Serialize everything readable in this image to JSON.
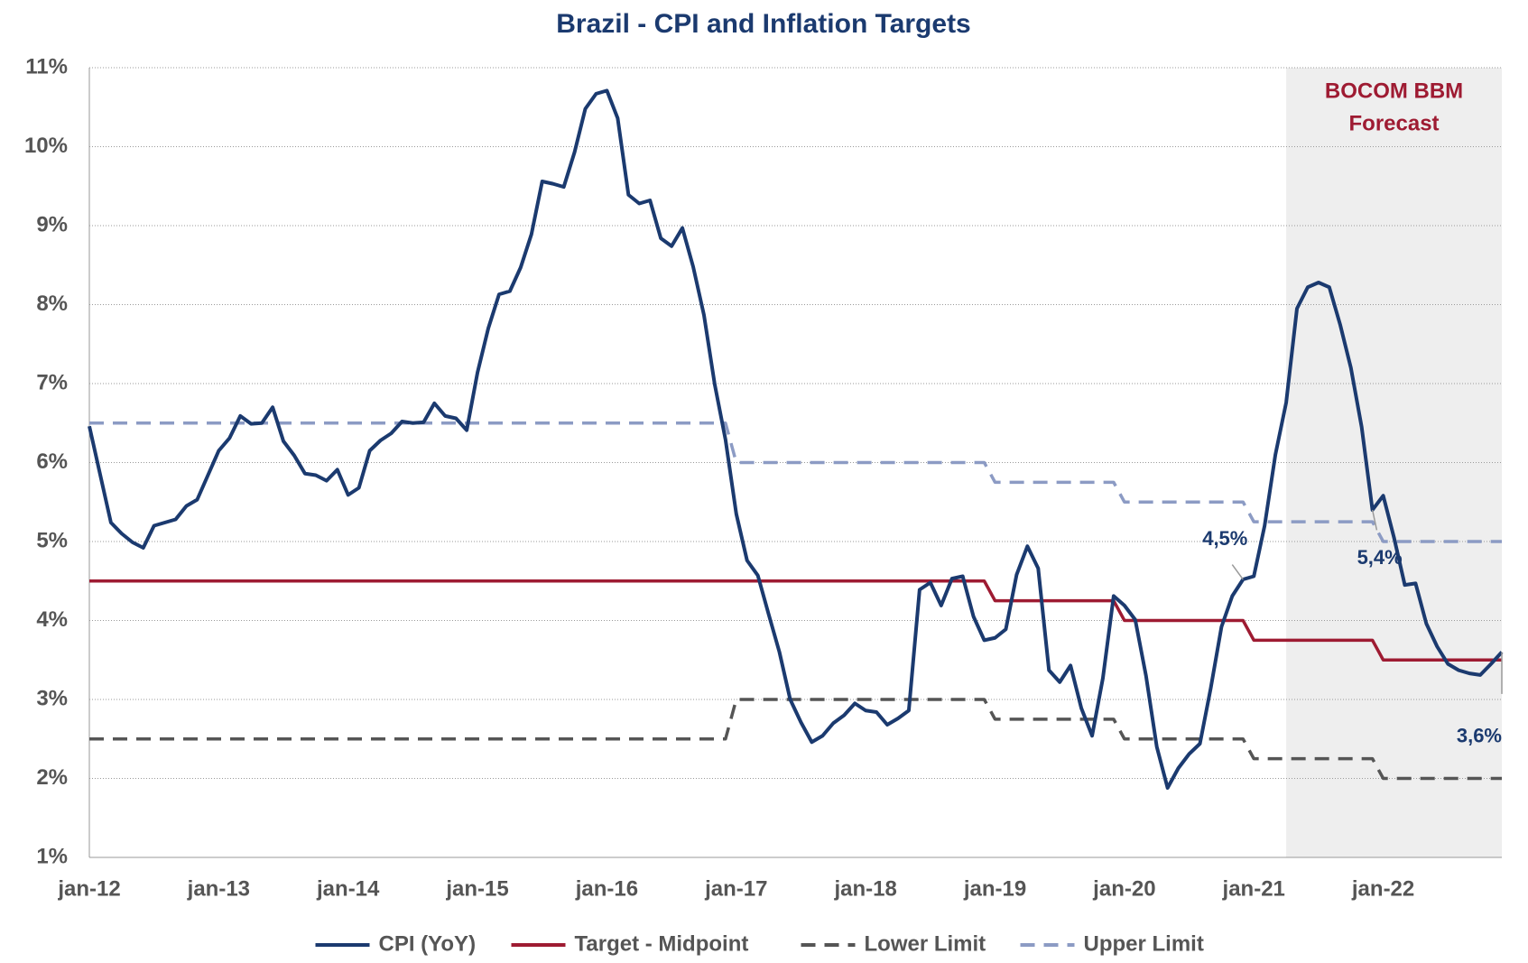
{
  "chart_data": {
    "type": "line",
    "title": "Brazil - CPI and Inflation Targets",
    "categories": [
      "jan-12",
      null,
      null,
      null,
      null,
      null,
      null,
      null,
      null,
      null,
      null,
      null,
      "jan-13",
      null,
      null,
      null,
      null,
      null,
      null,
      null,
      null,
      null,
      null,
      null,
      "jan-14",
      null,
      null,
      null,
      null,
      null,
      null,
      null,
      null,
      null,
      null,
      null,
      "jan-15",
      null,
      null,
      null,
      null,
      null,
      null,
      null,
      null,
      null,
      null,
      null,
      "jan-16",
      null,
      null,
      null,
      null,
      null,
      null,
      null,
      null,
      null,
      null,
      null,
      "jan-17",
      null,
      null,
      null,
      null,
      null,
      null,
      null,
      null,
      null,
      null,
      null,
      "jan-18",
      null,
      null,
      null,
      null,
      null,
      null,
      null,
      null,
      null,
      null,
      null,
      "jan-19",
      null,
      null,
      null,
      null,
      null,
      null,
      null,
      null,
      null,
      null,
      null,
      "jan-20",
      null,
      null,
      null,
      null,
      null,
      null,
      null,
      null,
      null,
      null,
      null,
      "jan-21",
      null,
      null,
      null,
      null,
      null,
      null,
      null,
      null,
      null,
      null,
      null,
      "jan-22",
      null,
      null,
      null,
      null,
      null,
      null,
      null,
      null,
      null,
      null,
      null
    ],
    "series": [
      {
        "name": "CPI (YoY)",
        "color": "#1b3a6f",
        "dash": false,
        "values": [
          6.46,
          5.85,
          5.24,
          5.1,
          4.99,
          4.92,
          5.2,
          5.24,
          5.28,
          5.45,
          5.53,
          5.84,
          6.15,
          6.31,
          6.59,
          6.49,
          6.5,
          6.7,
          6.27,
          6.09,
          5.86,
          5.84,
          5.77,
          5.91,
          5.59,
          5.68,
          6.15,
          6.28,
          6.37,
          6.52,
          6.5,
          6.51,
          6.75,
          6.59,
          6.56,
          6.41,
          7.14,
          7.7,
          8.13,
          8.17,
          8.47,
          8.89,
          9.56,
          9.53,
          9.49,
          9.93,
          10.48,
          10.67,
          10.71,
          10.36,
          9.39,
          9.28,
          9.32,
          8.84,
          8.74,
          8.97,
          8.48,
          7.87,
          6.99,
          6.29,
          5.35,
          4.76,
          4.57,
          4.08,
          3.6,
          3.0,
          2.71,
          2.46,
          2.54,
          2.7,
          2.8,
          2.95,
          2.86,
          2.84,
          2.68,
          2.76,
          2.86,
          4.39,
          4.48,
          4.19,
          4.53,
          4.56,
          4.05,
          3.75,
          3.78,
          3.89,
          4.58,
          4.94,
          4.66,
          3.37,
          3.22,
          3.43,
          2.89,
          2.54,
          3.27,
          4.31,
          4.19,
          4.01,
          3.3,
          2.4,
          1.88,
          2.13,
          2.31,
          2.44,
          3.14,
          3.92,
          4.31,
          4.52,
          4.56,
          5.2,
          6.1,
          6.76,
          7.95,
          8.22,
          8.28,
          8.22,
          7.75,
          7.2,
          6.45,
          5.4,
          5.58,
          5.05,
          4.45,
          4.47,
          3.96,
          3.67,
          3.45,
          3.37,
          3.33,
          3.31,
          3.45,
          3.6
        ],
        "value_labels": [
          null,
          null,
          null,
          null,
          null,
          null,
          null,
          null,
          null,
          null,
          null,
          null,
          null,
          null,
          null,
          null,
          null,
          null,
          null,
          null,
          null,
          null,
          null,
          null,
          null,
          null,
          null,
          null,
          null,
          null,
          null,
          null,
          null,
          null,
          null,
          null,
          null,
          null,
          null,
          null,
          null,
          null,
          null,
          null,
          null,
          null,
          null,
          null,
          null,
          null,
          null,
          null,
          null,
          null,
          null,
          null,
          null,
          null,
          null,
          null,
          null,
          null,
          null,
          null,
          null,
          null,
          null,
          null,
          null,
          null,
          null,
          null,
          null,
          null,
          null,
          null,
          null,
          null,
          null,
          null,
          null,
          null,
          null,
          null,
          null,
          null,
          null,
          null,
          null,
          null,
          null,
          null,
          null,
          null,
          null,
          null,
          null,
          null,
          null,
          null,
          null,
          null,
          null,
          null,
          null,
          null,
          null,
          "4,5%",
          null,
          null,
          null,
          null,
          null,
          null,
          null,
          null,
          null,
          null,
          null,
          "5,4%",
          null,
          null,
          null,
          null,
          null,
          null,
          null,
          null,
          null,
          null,
          null,
          "3,6%"
        ]
      },
      {
        "name": "Target - Midpoint",
        "color": "#9e1b32",
        "dash": false,
        "values": [
          4.5,
          4.5,
          4.5,
          4.5,
          4.5,
          4.5,
          4.5,
          4.5,
          4.5,
          4.5,
          4.5,
          4.5,
          4.5,
          4.5,
          4.5,
          4.5,
          4.5,
          4.5,
          4.5,
          4.5,
          4.5,
          4.5,
          4.5,
          4.5,
          4.5,
          4.5,
          4.5,
          4.5,
          4.5,
          4.5,
          4.5,
          4.5,
          4.5,
          4.5,
          4.5,
          4.5,
          4.5,
          4.5,
          4.5,
          4.5,
          4.5,
          4.5,
          4.5,
          4.5,
          4.5,
          4.5,
          4.5,
          4.5,
          4.5,
          4.5,
          4.5,
          4.5,
          4.5,
          4.5,
          4.5,
          4.5,
          4.5,
          4.5,
          4.5,
          4.5,
          4.5,
          4.5,
          4.5,
          4.5,
          4.5,
          4.5,
          4.5,
          4.5,
          4.5,
          4.5,
          4.5,
          4.5,
          4.5,
          4.5,
          4.5,
          4.5,
          4.5,
          4.5,
          4.5,
          4.5,
          4.5,
          4.5,
          4.5,
          4.5,
          4.25,
          4.25,
          4.25,
          4.25,
          4.25,
          4.25,
          4.25,
          4.25,
          4.25,
          4.25,
          4.25,
          4.25,
          4.0,
          4.0,
          4.0,
          4.0,
          4.0,
          4.0,
          4.0,
          4.0,
          4.0,
          4.0,
          4.0,
          4.0,
          3.75,
          3.75,
          3.75,
          3.75,
          3.75,
          3.75,
          3.75,
          3.75,
          3.75,
          3.75,
          3.75,
          3.75,
          3.5,
          3.5,
          3.5,
          3.5,
          3.5,
          3.5,
          3.5,
          3.5,
          3.5,
          3.5,
          3.5,
          3.5
        ]
      },
      {
        "name": "Lower Limit",
        "color": "#555555",
        "dash": true,
        "values": [
          2.5,
          2.5,
          2.5,
          2.5,
          2.5,
          2.5,
          2.5,
          2.5,
          2.5,
          2.5,
          2.5,
          2.5,
          2.5,
          2.5,
          2.5,
          2.5,
          2.5,
          2.5,
          2.5,
          2.5,
          2.5,
          2.5,
          2.5,
          2.5,
          2.5,
          2.5,
          2.5,
          2.5,
          2.5,
          2.5,
          2.5,
          2.5,
          2.5,
          2.5,
          2.5,
          2.5,
          2.5,
          2.5,
          2.5,
          2.5,
          2.5,
          2.5,
          2.5,
          2.5,
          2.5,
          2.5,
          2.5,
          2.5,
          2.5,
          2.5,
          2.5,
          2.5,
          2.5,
          2.5,
          2.5,
          2.5,
          2.5,
          2.5,
          2.5,
          2.5,
          3.0,
          3.0,
          3.0,
          3.0,
          3.0,
          3.0,
          3.0,
          3.0,
          3.0,
          3.0,
          3.0,
          3.0,
          3.0,
          3.0,
          3.0,
          3.0,
          3.0,
          3.0,
          3.0,
          3.0,
          3.0,
          3.0,
          3.0,
          3.0,
          2.75,
          2.75,
          2.75,
          2.75,
          2.75,
          2.75,
          2.75,
          2.75,
          2.75,
          2.75,
          2.75,
          2.75,
          2.5,
          2.5,
          2.5,
          2.5,
          2.5,
          2.5,
          2.5,
          2.5,
          2.5,
          2.5,
          2.5,
          2.5,
          2.25,
          2.25,
          2.25,
          2.25,
          2.25,
          2.25,
          2.25,
          2.25,
          2.25,
          2.25,
          2.25,
          2.25,
          2.0,
          2.0,
          2.0,
          2.0,
          2.0,
          2.0,
          2.0,
          2.0,
          2.0,
          2.0,
          2.0,
          2.0
        ]
      },
      {
        "name": "Upper Limit",
        "color": "#8c9bc4",
        "dash": true,
        "values": [
          6.5,
          6.5,
          6.5,
          6.5,
          6.5,
          6.5,
          6.5,
          6.5,
          6.5,
          6.5,
          6.5,
          6.5,
          6.5,
          6.5,
          6.5,
          6.5,
          6.5,
          6.5,
          6.5,
          6.5,
          6.5,
          6.5,
          6.5,
          6.5,
          6.5,
          6.5,
          6.5,
          6.5,
          6.5,
          6.5,
          6.5,
          6.5,
          6.5,
          6.5,
          6.5,
          6.5,
          6.5,
          6.5,
          6.5,
          6.5,
          6.5,
          6.5,
          6.5,
          6.5,
          6.5,
          6.5,
          6.5,
          6.5,
          6.5,
          6.5,
          6.5,
          6.5,
          6.5,
          6.5,
          6.5,
          6.5,
          6.5,
          6.5,
          6.5,
          6.5,
          6.0,
          6.0,
          6.0,
          6.0,
          6.0,
          6.0,
          6.0,
          6.0,
          6.0,
          6.0,
          6.0,
          6.0,
          6.0,
          6.0,
          6.0,
          6.0,
          6.0,
          6.0,
          6.0,
          6.0,
          6.0,
          6.0,
          6.0,
          6.0,
          5.75,
          5.75,
          5.75,
          5.75,
          5.75,
          5.75,
          5.75,
          5.75,
          5.75,
          5.75,
          5.75,
          5.75,
          5.5,
          5.5,
          5.5,
          5.5,
          5.5,
          5.5,
          5.5,
          5.5,
          5.5,
          5.5,
          5.5,
          5.5,
          5.25,
          5.25,
          5.25,
          5.25,
          5.25,
          5.25,
          5.25,
          5.25,
          5.25,
          5.25,
          5.25,
          5.25,
          5.0,
          5.0,
          5.0,
          5.0,
          5.0,
          5.0,
          5.0,
          5.0,
          5.0,
          5.0,
          5.0,
          5.0
        ]
      }
    ],
    "ylim": [
      1,
      11
    ],
    "yticks": [
      {
        "value": 1,
        "label": "1%"
      },
      {
        "value": 2,
        "label": "2%"
      },
      {
        "value": 3,
        "label": "3%"
      },
      {
        "value": 4,
        "label": "4%"
      },
      {
        "value": 5,
        "label": "5%"
      },
      {
        "value": 6,
        "label": "6%"
      },
      {
        "value": 7,
        "label": "7%"
      },
      {
        "value": 8,
        "label": "8%"
      },
      {
        "value": 9,
        "label": "9%"
      },
      {
        "value": 10,
        "label": "10%"
      },
      {
        "value": 11,
        "label": "11%"
      }
    ],
    "grid": true,
    "legend": "bottom",
    "shaded_from": 111,
    "shaded_label": [
      "BOCOM BBM",
      "Forecast"
    ],
    "shaded_label_color": "#9e1b32"
  }
}
